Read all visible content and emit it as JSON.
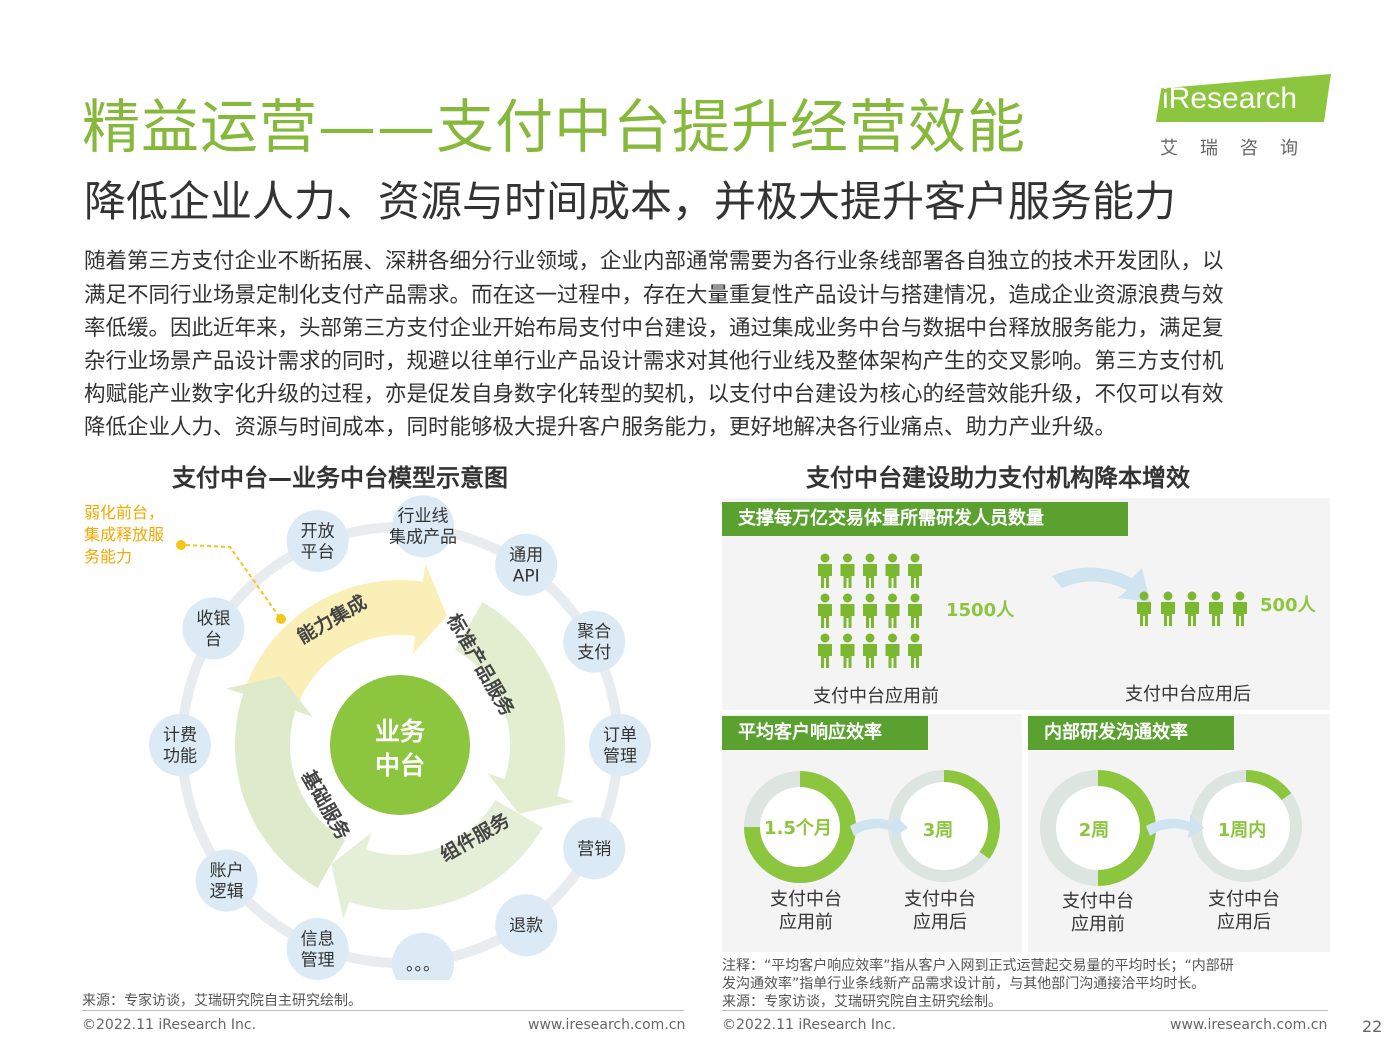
{
  "header": {
    "title": "精益运营——支付中台提升经营效能",
    "subtitle": "降低企业人力、资源与时间成本，并极大提升客户服务能力",
    "logo_text": "iResearch",
    "logo_cn": "艾瑞咨询"
  },
  "body_text": [
    "随着第三方支付企业不断拓展、深耕各细分行业领域，企业内部通常需要为各行业条线部署各自独立的技术开发团队，以",
    "满足不同行业场景定制化支付产品需求。而在这一过程中，存在大量重复性产品设计与搭建情况，造成企业资源浪费与效",
    "率低缓。因此近年来，头部第三方支付企业开始布局支付中台建设，通过集成业务中台与数据中台释放服务能力，满足复",
    "杂行业场景产品设计需求的同时，规避以往单行业产品设计需求对其他行业线及整体架构产生的交叉影响。第三方支付机",
    "构赋能产业数字化升级的过程，亦是促发自身数字化转型的契机，以支付中台建设为核心的经营效能升级，不仅可以有效",
    "降低企业人力、资源与时间成本，同时能够极大提升客户服务能力，更好地解决各行业痛点、助力产业升级。"
  ],
  "left": {
    "title": "支付中台—业务中台模型示意图",
    "callout": [
      "弱化前台，",
      "集成释放服",
      "务能力"
    ],
    "center": [
      "业务",
      "中台"
    ],
    "arcs": [
      "能力集成",
      "标准产品服务",
      "组件服务",
      "基础服务"
    ],
    "nodes": [
      [
        "开放",
        "平台"
      ],
      [
        "行业线",
        "集成产品"
      ],
      [
        "通用",
        "API"
      ],
      [
        "聚合",
        "支付"
      ],
      [
        "订单",
        "管理"
      ],
      [
        "营销"
      ],
      [
        "退款"
      ],
      [
        "。。。"
      ],
      [
        "信息",
        "管理"
      ],
      [
        "账户",
        "逻辑"
      ],
      [
        "计费",
        "功能"
      ],
      [
        "收银",
        "台"
      ]
    ],
    "source": "来源：专家访谈，艾瑞研究院自主研究绘制。"
  },
  "right": {
    "title": "支付中台建设助力支付机构降本增效",
    "panel_a": {
      "heading": "支撑每万亿交易体量所需研发人员数量",
      "before_value": "1500人",
      "after_value": "500人",
      "before_label": "支付中台应用前",
      "after_label": "支付中台应用后",
      "before_people": 15,
      "after_people": 5
    },
    "panel_b": {
      "heading": "平均客户响应效率",
      "before_value": "1.5个月",
      "after_value": "3周",
      "before_fraction": 0.75,
      "after_fraction": 0.35,
      "before_label": [
        "支付中台",
        "应用前"
      ],
      "after_label": [
        "支付中台",
        "应用后"
      ]
    },
    "panel_c": {
      "heading": "内部研发沟通效率",
      "before_value": "2周",
      "after_value": "1周内",
      "before_fraction": 0.5,
      "after_fraction": 0.15,
      "before_label": [
        "支付中台",
        "应用前"
      ],
      "after_label": [
        "支付中台",
        "应用后"
      ]
    },
    "note_lines": [
      "注释：“平均客户响应效率”指从客户入网到正式运营起交易量的平均时长；“内部研",
      "发沟通效率”指单行业条线新产品需求设计前，与其他部门沟通接洽平均时长。"
    ],
    "source": "来源：专家访谈，艾瑞研究院自主研究绘制。"
  },
  "footer": {
    "left_copyright": "©2022.11 iResearch Inc.",
    "left_url": "www.iresearch.com.cn",
    "right_copyright": "©2022.11 iResearch Inc.",
    "right_url": "www.iresearch.com.cn",
    "page_number": "22"
  },
  "colors": {
    "green": "#86b83b",
    "dark_green": "#5aa12f",
    "light_green": "#9cc95a",
    "yellow": "#f5c518"
  }
}
